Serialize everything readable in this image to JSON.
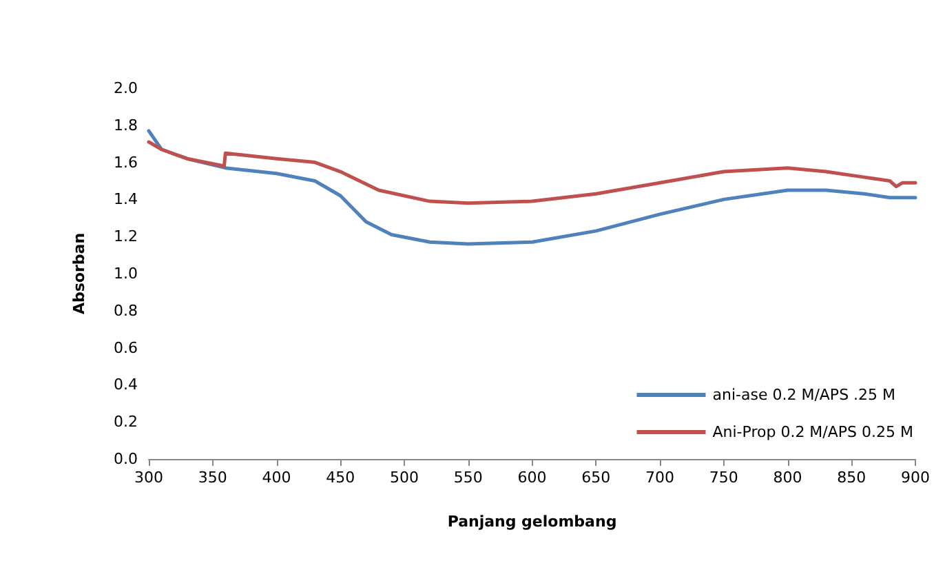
{
  "chart_data": {
    "type": "line",
    "xlabel": "Panjang gelombang",
    "ylabel": "Absorban",
    "xlim": [
      300,
      900
    ],
    "xticks": [
      300,
      350,
      400,
      450,
      500,
      550,
      600,
      650,
      700,
      750,
      800,
      850,
      900
    ],
    "ylim": [
      0,
      2.0
    ],
    "yticks": [
      {
        "value": 0,
        "label": "0.0"
      },
      {
        "value": 0.2,
        "label": "0.2"
      },
      {
        "value": 0.4,
        "label": "0.4"
      },
      {
        "value": 0.6,
        "label": "0.6"
      },
      {
        "value": 0.8,
        "label": "0.8"
      },
      {
        "value": 1.0,
        "label": "1.0"
      },
      {
        "value": 1.2,
        "label": "1.2"
      },
      {
        "value": 1.4,
        "label": "1.4"
      },
      {
        "value": 1.6,
        "label": "1.6"
      },
      {
        "value": 1.8,
        "label": "1.8"
      },
      {
        "value": 2.0,
        "label": "2.0"
      }
    ],
    "grid": false,
    "legend": "right",
    "marker": "none",
    "line_style": "solid",
    "series": [
      {
        "name": "ani-ase 0.2 M/APS .25 M",
        "color": "#4f81bd",
        "x": [
          300,
          305,
          310,
          330,
          360,
          400,
          430,
          450,
          470,
          490,
          520,
          550,
          600,
          650,
          700,
          750,
          800,
          830,
          860,
          880,
          900
        ],
        "values": [
          1.77,
          1.72,
          1.67,
          1.62,
          1.57,
          1.54,
          1.5,
          1.42,
          1.28,
          1.21,
          1.17,
          1.16,
          1.17,
          1.23,
          1.32,
          1.4,
          1.45,
          1.45,
          1.43,
          1.41,
          1.41
        ]
      },
      {
        "name": "Ani-Prop 0.2 M/APS 0.25 M",
        "color": "#c0504d",
        "x": [
          300,
          310,
          330,
          359,
          360,
          400,
          430,
          450,
          480,
          520,
          550,
          600,
          650,
          700,
          750,
          800,
          830,
          860,
          880,
          885,
          890,
          900
        ],
        "values": [
          1.71,
          1.67,
          1.62,
          1.58,
          1.65,
          1.62,
          1.6,
          1.55,
          1.45,
          1.39,
          1.38,
          1.39,
          1.43,
          1.49,
          1.55,
          1.57,
          1.55,
          1.52,
          1.5,
          1.47,
          1.49,
          1.49
        ]
      }
    ]
  }
}
